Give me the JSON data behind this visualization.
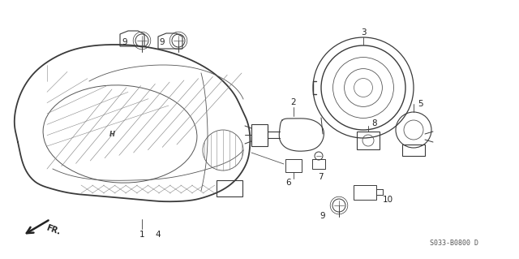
{
  "bg_color": "#ffffff",
  "fig_width": 6.4,
  "fig_height": 3.19,
  "dpi": 100,
  "diagram_code": "S033-B0800 D",
  "fr_label": "FR.",
  "line_color": "#3a3a3a",
  "detail_color": "#555555"
}
